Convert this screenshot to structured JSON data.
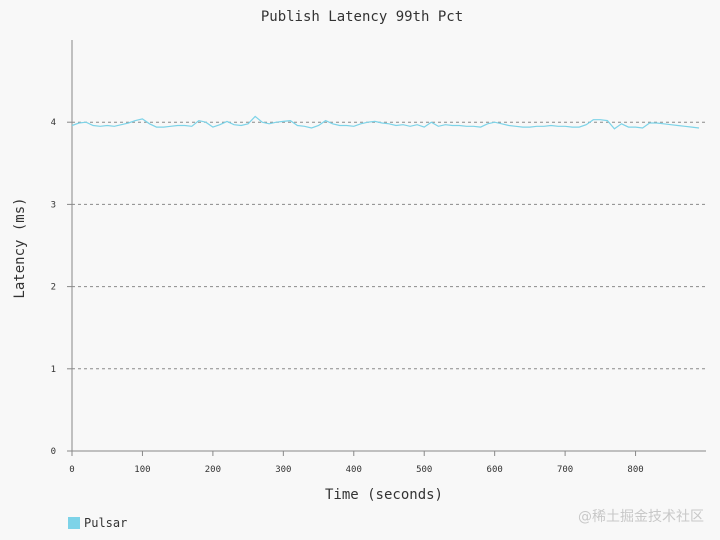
{
  "chart_data": {
    "type": "line",
    "title": "Publish Latency 99th Pct",
    "xlabel": "Time (seconds)",
    "ylabel": "Latency (ms)",
    "xlim": [
      0,
      900
    ],
    "ylim": [
      0,
      5
    ],
    "xticks": [
      0,
      100,
      200,
      300,
      400,
      500,
      600,
      700,
      800
    ],
    "yticks": [
      0,
      1,
      2,
      3,
      4
    ],
    "grid": "horizontal-dashed",
    "legend_position": "bottom-left",
    "series": [
      {
        "name": "Pulsar",
        "color": "#7dd3e8",
        "x": [
          0,
          10,
          20,
          30,
          40,
          50,
          60,
          70,
          80,
          90,
          100,
          110,
          120,
          130,
          140,
          150,
          160,
          170,
          180,
          190,
          200,
          210,
          220,
          230,
          240,
          250,
          260,
          270,
          280,
          290,
          300,
          310,
          320,
          330,
          340,
          350,
          360,
          370,
          380,
          390,
          400,
          410,
          420,
          430,
          440,
          450,
          460,
          470,
          480,
          490,
          500,
          510,
          520,
          530,
          540,
          550,
          560,
          570,
          580,
          590,
          600,
          610,
          620,
          630,
          640,
          650,
          660,
          670,
          680,
          690,
          700,
          710,
          720,
          730,
          740,
          750,
          760,
          770,
          780,
          790,
          800,
          810,
          820,
          830,
          840,
          850,
          860,
          870,
          880,
          890
        ],
        "y": [
          3.96,
          3.99,
          4.0,
          3.96,
          3.95,
          3.96,
          3.95,
          3.97,
          3.99,
          4.02,
          4.04,
          3.98,
          3.94,
          3.94,
          3.95,
          3.96,
          3.96,
          3.95,
          4.02,
          4.0,
          3.94,
          3.97,
          4.01,
          3.97,
          3.96,
          3.98,
          4.07,
          4.0,
          3.98,
          4.0,
          4.01,
          4.02,
          3.96,
          3.95,
          3.93,
          3.96,
          4.02,
          3.98,
          3.96,
          3.96,
          3.95,
          3.98,
          4.0,
          4.01,
          3.99,
          3.98,
          3.96,
          3.97,
          3.95,
          3.97,
          3.94,
          4.0,
          3.95,
          3.97,
          3.96,
          3.96,
          3.95,
          3.95,
          3.94,
          3.98,
          4.0,
          3.98,
          3.96,
          3.95,
          3.94,
          3.94,
          3.95,
          3.95,
          3.96,
          3.95,
          3.95,
          3.94,
          3.94,
          3.97,
          4.03,
          4.03,
          4.02,
          3.92,
          3.98,
          3.94,
          3.94,
          3.93,
          3.99,
          3.99,
          3.98,
          3.97,
          3.96,
          3.95,
          3.94,
          3.93
        ]
      }
    ]
  },
  "watermark": "@稀土掘金技术社区"
}
